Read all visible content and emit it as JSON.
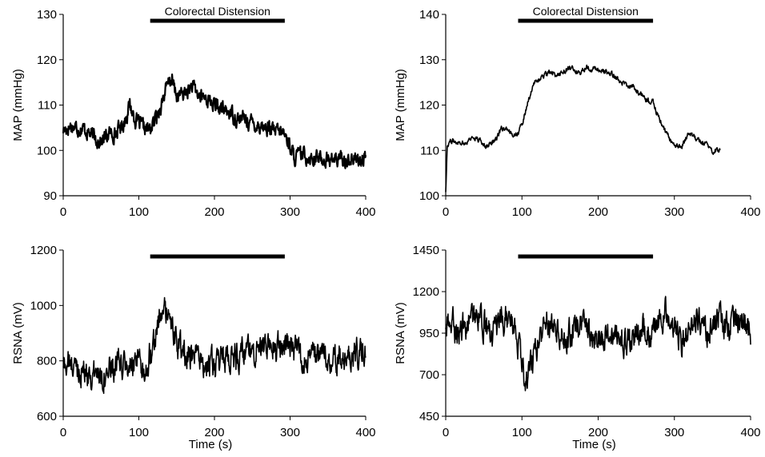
{
  "chart_data": [
    {
      "type": "line",
      "panel": "top-left",
      "ylabel": "MAP (mmHg)",
      "xlabel": "",
      "xlim": [
        0,
        400
      ],
      "ylim": [
        90,
        130
      ],
      "xticks": [
        0,
        100,
        200,
        300,
        400
      ],
      "yticks": [
        90,
        100,
        110,
        120,
        130
      ],
      "annotation": {
        "text": "Colorectal Distension",
        "x_start": 115,
        "x_end": 293
      },
      "series": [
        {
          "x": [
            0,
            10,
            20,
            30,
            40,
            50,
            60,
            70,
            80,
            88,
            95,
            105,
            115,
            125,
            135,
            143,
            150,
            160,
            170,
            180,
            190,
            200,
            210,
            220,
            230,
            240,
            250,
            260,
            270,
            280,
            290,
            298,
            305,
            315,
            330,
            350,
            370,
            390,
            400
          ],
          "values": [
            104.5,
            105.5,
            105,
            104.5,
            103,
            102,
            103.5,
            104,
            106,
            110,
            107,
            105,
            104.5,
            108,
            113,
            116,
            112,
            112.5,
            114,
            112,
            111.5,
            110,
            109,
            108.5,
            107,
            107,
            106,
            105.5,
            105,
            104,
            104,
            102,
            98.5,
            99,
            98.5,
            98,
            98,
            98,
            97.5
          ],
          "noise": 1.4
        }
      ]
    },
    {
      "type": "line",
      "panel": "top-right",
      "ylabel": "MAP (mmHg)",
      "xlabel": "",
      "xlim": [
        0,
        400
      ],
      "ylim": [
        100,
        140
      ],
      "xticks": [
        0,
        100,
        200,
        300,
        400
      ],
      "yticks": [
        100,
        110,
        120,
        130,
        140
      ],
      "annotation": {
        "text": "Colorectal Distension",
        "x_start": 95,
        "x_end": 272
      },
      "series": [
        {
          "x": [
            0,
            2,
            5,
            15,
            25,
            35,
            45,
            55,
            65,
            75,
            85,
            95,
            100,
            108,
            115,
            125,
            135,
            145,
            155,
            165,
            175,
            185,
            195,
            205,
            215,
            225,
            235,
            245,
            255,
            265,
            272,
            280,
            290,
            300,
            310,
            320,
            330,
            340,
            350,
            360
          ],
          "values": [
            101,
            111,
            112,
            112,
            111.5,
            113,
            112,
            111,
            112.5,
            115,
            113.5,
            114,
            115.5,
            121,
            124.5,
            126,
            127,
            126.5,
            127.5,
            128,
            127,
            128.5,
            128,
            127.5,
            127,
            126,
            124.5,
            124,
            122.5,
            121,
            120.5,
            117,
            113.5,
            111,
            111,
            114,
            112.5,
            111.5,
            110,
            110
          ],
          "noise": 0.5
        }
      ]
    },
    {
      "type": "line",
      "panel": "bottom-left",
      "ylabel": "RSNA (mV)",
      "xlabel": "Time (s)",
      "xlim": [
        0,
        400
      ],
      "ylim": [
        600,
        1200
      ],
      "xticks": [
        0,
        100,
        200,
        300,
        400
      ],
      "yticks": [
        600,
        800,
        1000,
        1200
      ],
      "annotation": {
        "text": "",
        "x_start": 115,
        "x_end": 293
      },
      "series": [
        {
          "x": [
            0,
            10,
            20,
            30,
            40,
            50,
            60,
            70,
            80,
            90,
            100,
            110,
            118,
            125,
            133,
            140,
            150,
            160,
            170,
            180,
            190,
            200,
            210,
            220,
            230,
            240,
            250,
            260,
            270,
            280,
            290,
            300,
            310,
            320,
            330,
            340,
            350,
            360,
            370,
            380,
            390,
            400
          ],
          "values": [
            790,
            785,
            770,
            760,
            745,
            755,
            760,
            775,
            780,
            775,
            780,
            770,
            870,
            930,
            990,
            950,
            860,
            830,
            810,
            800,
            790,
            780,
            795,
            810,
            820,
            830,
            840,
            860,
            855,
            850,
            860,
            845,
            830,
            815,
            810,
            805,
            800,
            810,
            815,
            820,
            830,
            840
          ],
          "noise": 42
        }
      ]
    },
    {
      "type": "line",
      "panel": "bottom-right",
      "ylabel": "RSNA (mV)",
      "xlabel": "Time (s)",
      "xlim": [
        0,
        400
      ],
      "ylim": [
        450,
        1450
      ],
      "xticks": [
        0,
        100,
        200,
        300,
        400
      ],
      "yticks": [
        450,
        700,
        950,
        1200,
        1450
      ],
      "annotation": {
        "text": "",
        "x_start": 95,
        "x_end": 272
      },
      "series": [
        {
          "x": [
            0,
            10,
            20,
            30,
            40,
            50,
            60,
            70,
            80,
            90,
            95,
            100,
            105,
            110,
            120,
            130,
            140,
            150,
            160,
            170,
            180,
            190,
            200,
            210,
            220,
            230,
            240,
            250,
            260,
            270,
            280,
            290,
            300,
            310,
            320,
            330,
            340,
            350,
            360,
            370,
            380,
            390,
            400
          ],
          "values": [
            980,
            1000,
            960,
            1020,
            1080,
            1000,
            940,
            980,
            1050,
            980,
            900,
            720,
            680,
            740,
            880,
            990,
            1030,
            960,
            940,
            970,
            980,
            950,
            920,
            940,
            960,
            920,
            880,
            960,
            980,
            920,
            1040,
            1070,
            980,
            900,
            980,
            1050,
            960,
            1000,
            1040,
            980,
            1060,
            1040,
            950
          ],
          "noise": 70
        }
      ]
    }
  ]
}
